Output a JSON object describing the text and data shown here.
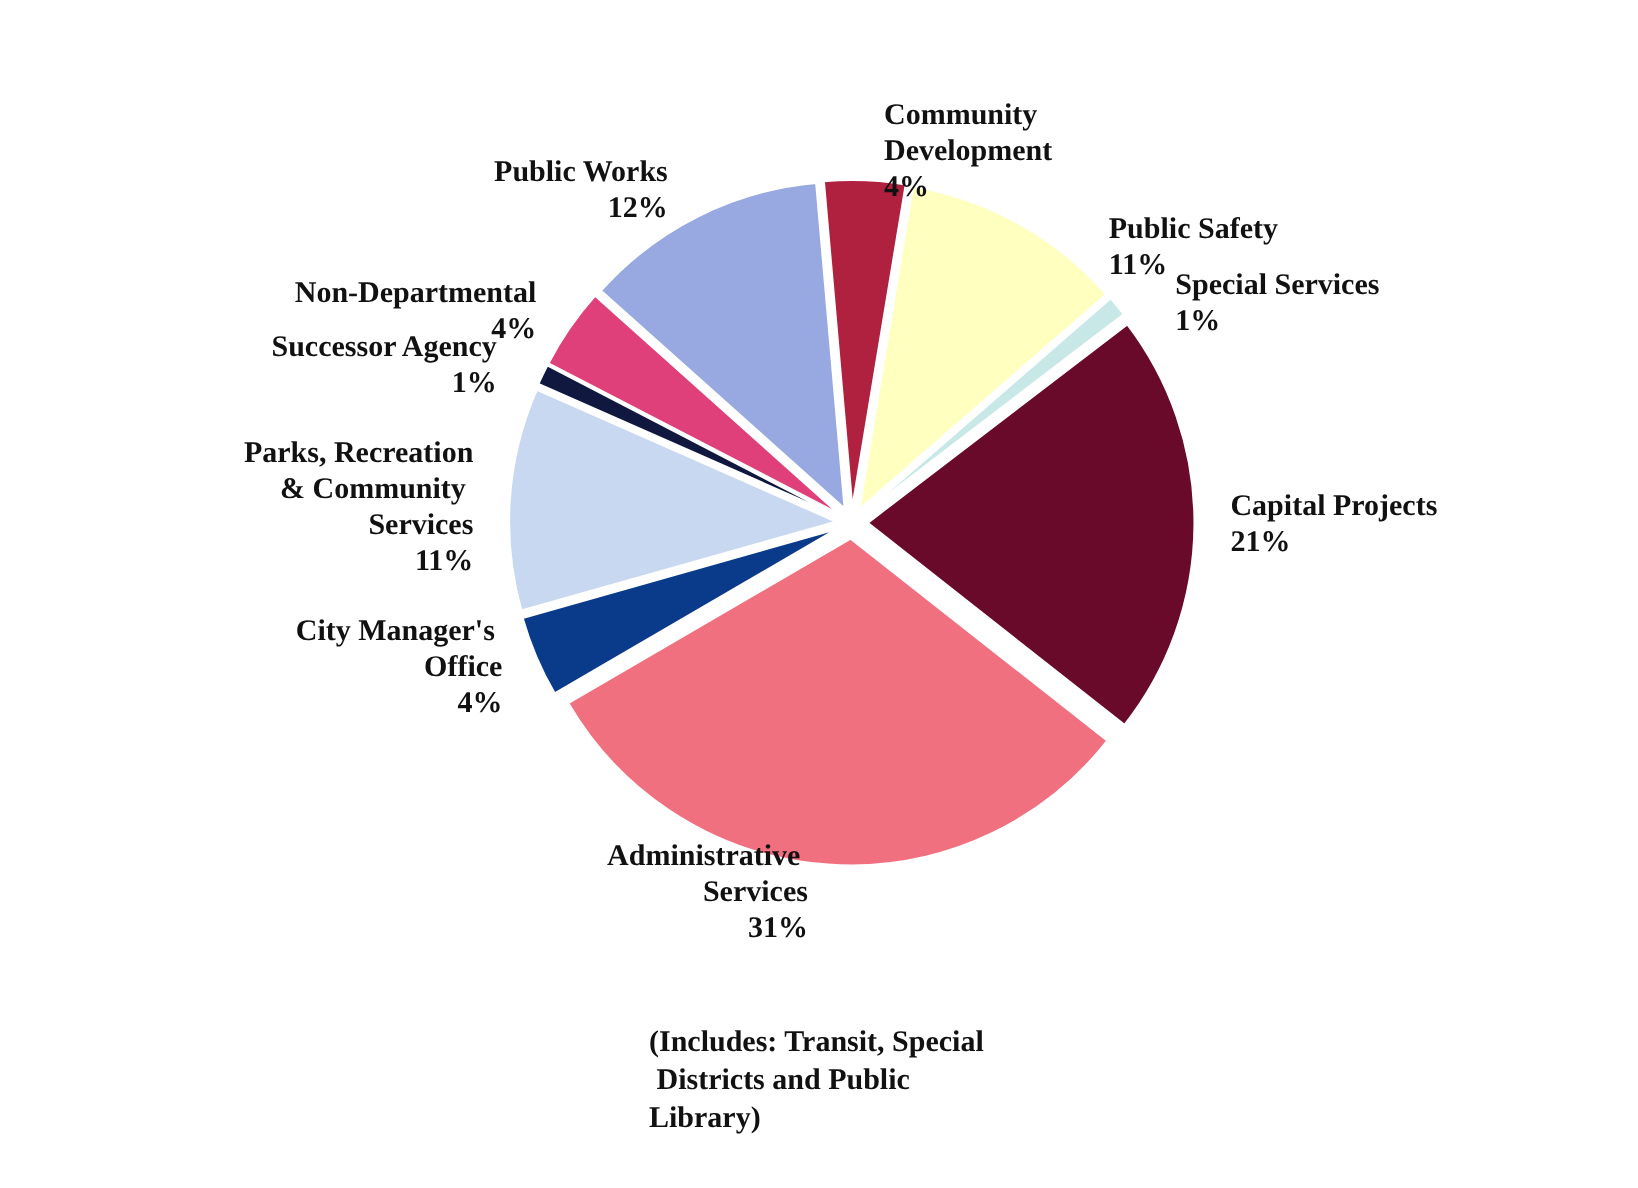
{
  "chart_data": {
    "type": "pie",
    "categories": [
      "Community Development",
      "Public Safety",
      "Special Services",
      "Capital Projects",
      "Administrative Services",
      "City Manager's Office",
      "Parks, Recreation & Community Services",
      "Successor Agency",
      "Non-Departmental",
      "Public Works"
    ],
    "values": [
      4,
      11,
      1,
      21,
      31,
      4,
      11,
      1,
      4,
      12
    ],
    "colors": [
      "#b0203f",
      "#ffffc0",
      "#c8e8e8",
      "#6a0a2a",
      "#f07080",
      "#0a3a8a",
      "#c8d8f0",
      "#101840",
      "#e0407a",
      "#98a8e0"
    ],
    "value_labels": [
      "4%",
      "11%",
      "1%",
      "21%",
      "31%",
      "4%",
      "11%",
      "1%",
      "4%",
      "12%"
    ],
    "legend": false,
    "annotations": [
      "(Includes: Transit, Special Districts and Public Library)"
    ]
  }
}
